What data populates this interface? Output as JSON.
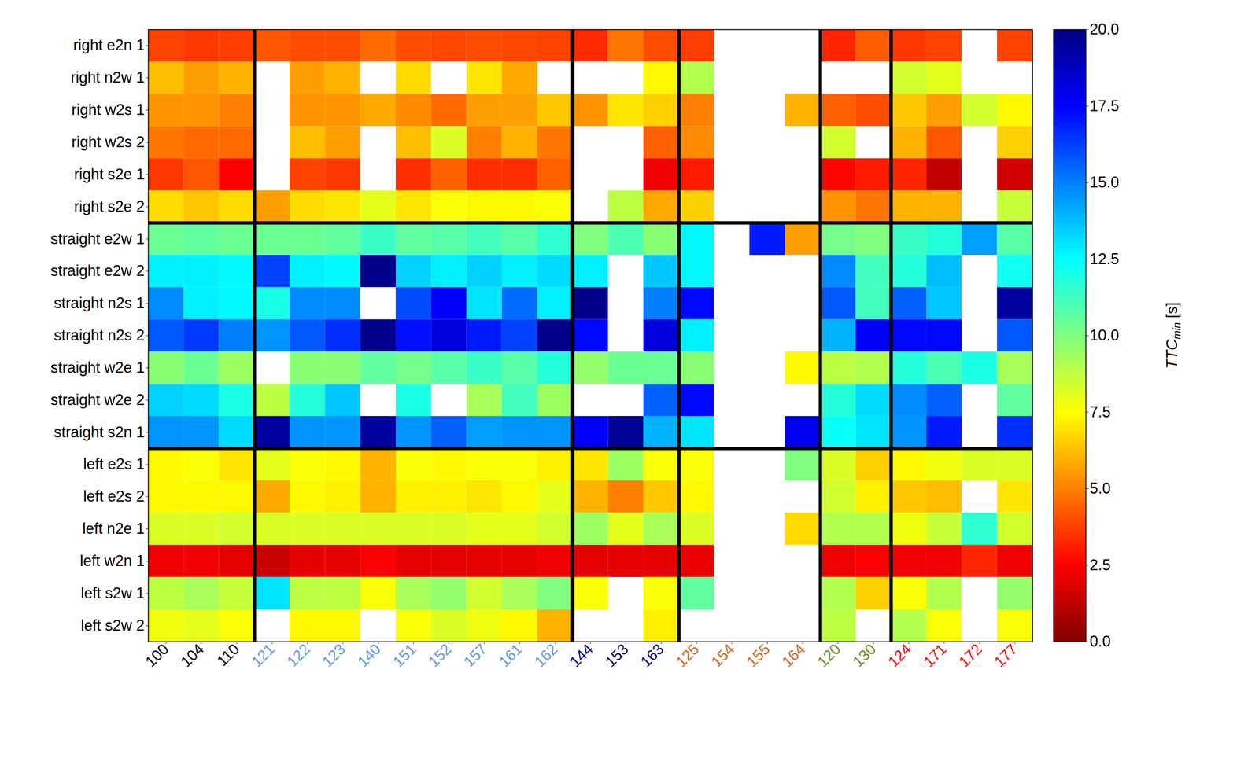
{
  "chart_data": {
    "type": "heatmap",
    "row_groups": [
      [
        "right e2n 1",
        "right n2w 1",
        "right w2s 1",
        "right w2s 2",
        "right s2e 1",
        "right s2e 2"
      ],
      [
        "straight e2w 1",
        "straight e2w 2",
        "straight n2s 1",
        "straight n2s 2",
        "straight w2e 1",
        "straight w2e 2",
        "straight s2n 1"
      ],
      [
        "left e2s 1",
        "left e2s 2",
        "left n2e 1",
        "left w2n 1",
        "left s2w 1",
        "left s2w 2"
      ]
    ],
    "column_groups": [
      {
        "color": "#000000",
        "columns": [
          "100",
          "104",
          "110"
        ]
      },
      {
        "color": "#6495ED",
        "columns": [
          "121",
          "122",
          "123",
          "140",
          "151",
          "152",
          "157",
          "161",
          "162"
        ]
      },
      {
        "color": "#000080",
        "columns": [
          "144",
          "153",
          "163"
        ]
      },
      {
        "color": "#D2691E",
        "columns": [
          "125",
          "154",
          "155",
          "164"
        ]
      },
      {
        "color": "#6B8E23",
        "columns": [
          "120",
          "130"
        ]
      },
      {
        "color": "#FF0000",
        "columns": [
          "124",
          "171",
          "172",
          "177"
        ]
      }
    ],
    "values": [
      [
        3.8,
        3.6,
        3.7,
        4.2,
        4.0,
        4.0,
        4.6,
        4.0,
        3.9,
        4.0,
        3.9,
        3.8,
        3.3,
        4.8,
        4.0,
        3.7,
        null,
        null,
        null,
        3.2,
        4.3,
        3.6,
        3.8,
        null,
        3.8
      ],
      [
        6.2,
        5.6,
        6.0,
        null,
        5.6,
        6.0,
        null,
        6.8,
        null,
        7.0,
        5.8,
        null,
        null,
        null,
        7.4,
        9.0,
        null,
        null,
        null,
        null,
        null,
        8.4,
        8.0,
        null,
        null
      ],
      [
        5.4,
        5.4,
        5.0,
        null,
        5.4,
        5.4,
        5.8,
        5.2,
        4.6,
        5.6,
        5.6,
        6.4,
        5.4,
        7.0,
        6.6,
        5.0,
        null,
        null,
        6.0,
        4.4,
        4.0,
        6.4,
        5.6,
        8.4,
        7.4
      ],
      [
        4.8,
        4.6,
        4.6,
        null,
        6.2,
        5.6,
        null,
        6.2,
        8.2,
        5.0,
        6.0,
        4.8,
        null,
        null,
        4.4,
        5.2,
        null,
        null,
        null,
        8.4,
        null,
        6.0,
        4.2,
        null,
        6.6
      ],
      [
        3.6,
        4.2,
        2.5,
        null,
        3.8,
        3.6,
        null,
        3.4,
        4.4,
        3.4,
        3.4,
        4.4,
        null,
        null,
        2.2,
        3.0,
        null,
        null,
        null,
        2.6,
        3.0,
        3.2,
        1.3,
        null,
        1.6
      ],
      [
        6.8,
        6.4,
        6.8,
        5.6,
        6.8,
        7.0,
        8.0,
        7.0,
        7.6,
        7.4,
        7.4,
        7.6,
        null,
        8.8,
        5.8,
        6.6,
        null,
        null,
        null,
        5.4,
        4.8,
        6.0,
        6.0,
        null,
        8.6
      ],
      [
        10.4,
        10.6,
        10.4,
        10.4,
        10.4,
        10.6,
        11.4,
        10.6,
        10.8,
        11.2,
        10.8,
        11.6,
        10.0,
        11.0,
        9.8,
        12.6,
        null,
        17.0,
        5.6,
        10.2,
        10.0,
        11.4,
        11.8,
        14.4,
        10.8
      ],
      [
        12.8,
        12.8,
        12.6,
        16.2,
        12.8,
        12.6,
        19.8,
        13.4,
        12.8,
        13.4,
        12.8,
        13.2,
        12.8,
        null,
        13.6,
        12.6,
        null,
        null,
        null,
        14.8,
        11.2,
        11.8,
        13.8,
        null,
        12.2
      ],
      [
        14.8,
        12.8,
        12.6,
        12.0,
        14.8,
        14.8,
        null,
        16.0,
        17.6,
        13.0,
        15.4,
        12.8,
        19.8,
        null,
        15.0,
        17.4,
        null,
        null,
        null,
        15.8,
        11.2,
        15.6,
        13.6,
        null,
        19.4
      ],
      [
        15.8,
        16.4,
        15.0,
        14.6,
        15.8,
        16.6,
        19.8,
        17.2,
        18.2,
        17.0,
        16.2,
        19.8,
        17.4,
        null,
        18.2,
        12.8,
        null,
        null,
        null,
        14.0,
        17.6,
        17.4,
        17.4,
        null,
        15.8
      ],
      [
        9.8,
        10.4,
        9.4,
        null,
        9.8,
        9.8,
        10.6,
        10.2,
        10.8,
        11.4,
        10.8,
        11.8,
        9.6,
        10.4,
        10.4,
        9.8,
        null,
        null,
        7.4,
        8.8,
        9.0,
        11.8,
        11.0,
        12.0,
        9.2
      ],
      [
        13.4,
        13.2,
        12.0,
        8.8,
        11.8,
        13.6,
        null,
        12.0,
        null,
        9.2,
        11.2,
        9.4,
        null,
        null,
        15.6,
        17.4,
        null,
        null,
        null,
        11.8,
        13.2,
        14.8,
        15.6,
        null,
        10.6
      ],
      [
        14.6,
        14.6,
        13.2,
        19.4,
        14.6,
        14.6,
        19.4,
        14.6,
        15.6,
        14.4,
        14.6,
        14.6,
        17.6,
        19.6,
        14.0,
        13.0,
        null,
        null,
        17.8,
        12.4,
        13.0,
        14.6,
        17.0,
        null,
        16.6
      ],
      [
        7.4,
        7.6,
        7.0,
        8.0,
        7.6,
        7.4,
        6.0,
        7.6,
        7.4,
        7.6,
        7.6,
        7.2,
        7.0,
        9.4,
        7.6,
        7.6,
        null,
        null,
        10.0,
        8.2,
        6.6,
        7.4,
        7.8,
        8.2,
        8.2
      ],
      [
        7.4,
        7.4,
        7.4,
        5.8,
        7.4,
        7.2,
        6.0,
        7.2,
        7.2,
        7.0,
        7.4,
        8.0,
        6.0,
        5.0,
        6.4,
        7.4,
        null,
        null,
        null,
        8.4,
        7.2,
        6.4,
        6.2,
        null,
        7.0
      ],
      [
        8.2,
        8.2,
        8.4,
        8.2,
        8.2,
        8.2,
        8.2,
        8.2,
        8.2,
        8.0,
        8.0,
        8.4,
        9.4,
        8.0,
        9.2,
        8.2,
        null,
        null,
        6.8,
        9.0,
        9.0,
        7.8,
        8.6,
        11.6,
        8.4
      ],
      [
        2.2,
        2.2,
        2.0,
        1.4,
        2.0,
        2.0,
        2.4,
        2.0,
        2.0,
        2.0,
        2.0,
        2.2,
        2.0,
        2.0,
        2.0,
        2.1,
        null,
        null,
        null,
        2.2,
        2.4,
        2.2,
        2.2,
        3.2,
        2.2
      ],
      [
        8.8,
        9.2,
        8.6,
        13.0,
        8.8,
        8.8,
        7.6,
        9.2,
        9.6,
        8.4,
        9.2,
        10.0,
        7.6,
        null,
        7.6,
        10.6,
        null,
        null,
        null,
        9.0,
        6.6,
        7.6,
        9.0,
        null,
        9.6
      ],
      [
        7.8,
        8.0,
        7.6,
        null,
        7.4,
        7.4,
        null,
        7.6,
        8.2,
        7.8,
        7.4,
        6.0,
        null,
        null,
        7.2,
        null,
        null,
        null,
        null,
        8.8,
        null,
        9.0,
        7.6,
        null,
        7.6
      ]
    ],
    "colorbar": {
      "range": [
        0,
        20
      ],
      "ticks": [
        {
          "value": 0,
          "label": "0.0"
        },
        {
          "value": 2.5,
          "label": "2.5"
        },
        {
          "value": 5,
          "label": "5.0"
        },
        {
          "value": 7.5,
          "label": "7.5"
        },
        {
          "value": 10,
          "label": "10.0"
        },
        {
          "value": 12.5,
          "label": "12.5"
        },
        {
          "value": 15,
          "label": "15.0"
        },
        {
          "value": 17.5,
          "label": "17.5"
        },
        {
          "value": 20,
          "label": "20.0"
        }
      ],
      "label": {
        "text": "TTC",
        "subscript": "min",
        "suffix": " [s]"
      }
    }
  }
}
